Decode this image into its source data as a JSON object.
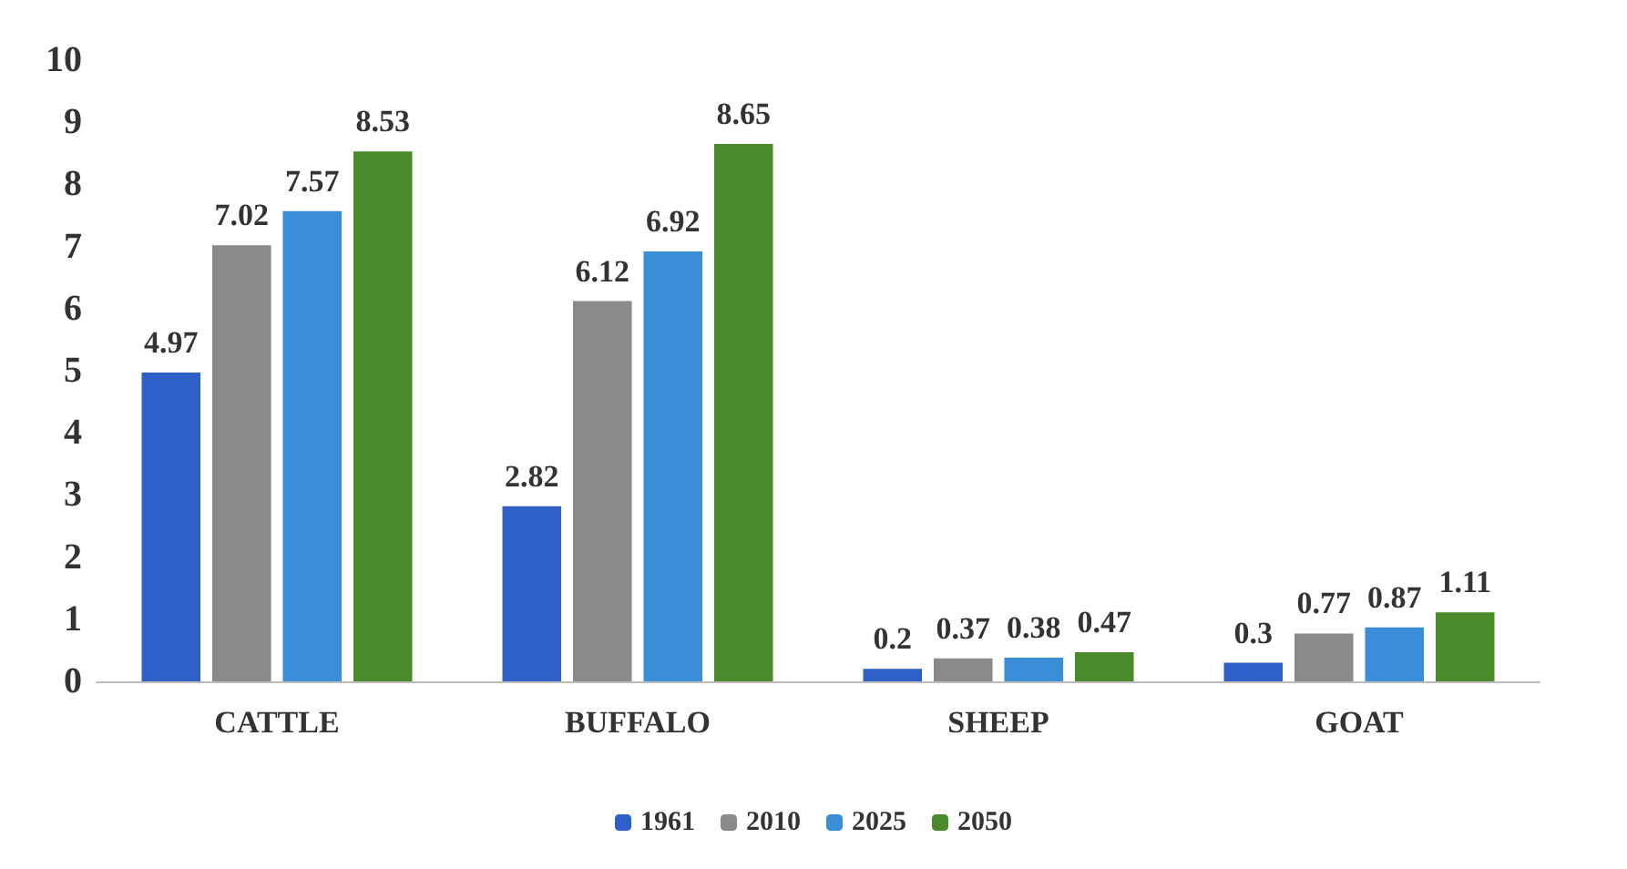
{
  "chart_data": {
    "type": "bar",
    "categories": [
      "CATTLE",
      "BUFFALO",
      "SHEEP",
      "GOAT"
    ],
    "series": [
      {
        "name": "1961",
        "color": "#2e60c8",
        "values": [
          4.97,
          2.82,
          0.2,
          0.3
        ]
      },
      {
        "name": "2010",
        "color": "#8a8a8a",
        "values": [
          7.02,
          6.12,
          0.37,
          0.77
        ]
      },
      {
        "name": "2025",
        "color": "#3a8ed8",
        "values": [
          7.57,
          6.92,
          0.38,
          0.87
        ]
      },
      {
        "name": "2050",
        "color": "#4b8a2b",
        "values": [
          8.53,
          8.65,
          0.47,
          1.11
        ]
      }
    ],
    "ylim": [
      0,
      10
    ],
    "yticks": [
      0,
      1,
      2,
      3,
      4,
      5,
      6,
      7,
      8,
      9,
      10
    ],
    "grid": false,
    "legend": "bottom",
    "data_labels": true
  }
}
